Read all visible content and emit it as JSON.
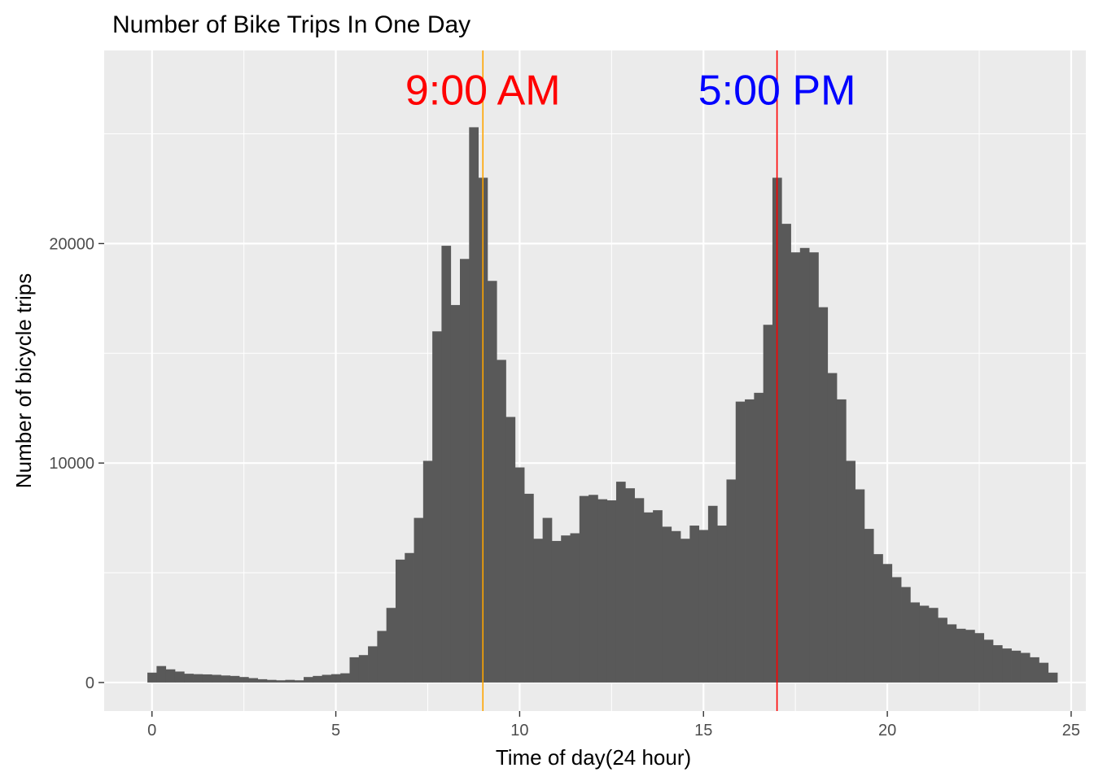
{
  "chart_data": {
    "type": "bar",
    "title": "Number of Bike Trips In One Day",
    "xlabel": "Time of day(24 hour)",
    "ylabel": "Number of bicycle trips",
    "xlim": [
      -1.3,
      25.4
    ],
    "ylim": [
      -1300,
      28800
    ],
    "x_ticks": [
      0,
      5,
      10,
      15,
      20,
      25
    ],
    "y_ticks": [
      0,
      10000,
      20000
    ],
    "bin_start": -0.125,
    "bin_width": 0.25,
    "values": [
      450,
      750,
      600,
      500,
      400,
      380,
      370,
      350,
      320,
      300,
      250,
      200,
      150,
      120,
      100,
      120,
      100,
      250,
      300,
      350,
      380,
      420,
      1150,
      1250,
      1650,
      2350,
      3400,
      5600,
      5900,
      7500,
      10100,
      16000,
      19900,
      17200,
      19300,
      25300,
      23000,
      18300,
      14700,
      12100,
      9800,
      8600,
      6550,
      7500,
      6450,
      6700,
      6800,
      8500,
      8550,
      8350,
      8300,
      9150,
      8850,
      8400,
      7750,
      7850,
      7100,
      6900,
      6550,
      7150,
      6950,
      8050,
      7150,
      9250,
      12800,
      12900,
      13200,
      16300,
      23000,
      20900,
      19600,
      19800,
      19600,
      17100,
      14100,
      12900,
      10100,
      8800,
      7000,
      5850,
      5400,
      4800,
      4350,
      3650,
      3500,
      3400,
      2950,
      2650,
      2450,
      2400,
      2250,
      1950,
      1700,
      1550,
      1450,
      1350,
      1150,
      900,
      450
    ],
    "bar_color": "#595959",
    "panel_background": "#ebebeb",
    "grid": true,
    "vlines": [
      {
        "x": 9,
        "color": "#ffa500"
      },
      {
        "x": 17,
        "color": "#ff0000"
      }
    ],
    "annotations": [
      {
        "text": "9:00 AM",
        "x": 9,
        "y": 27000,
        "color": "#ff0000"
      },
      {
        "text": "5:00 PM",
        "x": 17,
        "y": 27000,
        "color": "#0000ff"
      }
    ]
  }
}
